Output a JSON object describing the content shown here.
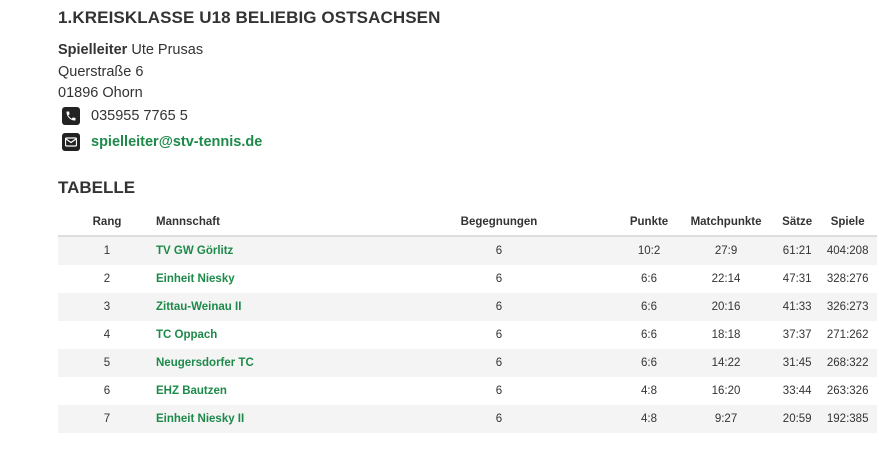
{
  "league": {
    "title": "1.KREISKLASSE U18 BELIEBIG OSTSACHSEN"
  },
  "contact": {
    "role_label": "Spielleiter",
    "name": "Ute Prusas",
    "street": "Querstraße 6",
    "city": "01896 Ohorn",
    "phone": "035955 7765 5",
    "email": "spielleiter@stv-tennis.de",
    "phone_icon": "phone-icon",
    "email_icon": "envelope-icon"
  },
  "table": {
    "title": "TABELLE",
    "headers": [
      "Rang",
      "Mannschaft",
      "Begegnungen",
      "Punkte",
      "Matchpunkte",
      "Sätze",
      "Spiele"
    ],
    "rows": [
      {
        "rang": "1",
        "team": "TV GW Görlitz",
        "begegnungen": "6",
        "punkte": "10:2",
        "matchpunkte": "27:9",
        "saetze": "61:21",
        "spiele": "404:208"
      },
      {
        "rang": "2",
        "team": "Einheit Niesky",
        "begegnungen": "6",
        "punkte": "6:6",
        "matchpunkte": "22:14",
        "saetze": "47:31",
        "spiele": "328:276"
      },
      {
        "rang": "3",
        "team": "Zittau-Weinau II",
        "begegnungen": "6",
        "punkte": "6:6",
        "matchpunkte": "20:16",
        "saetze": "41:33",
        "spiele": "326:273"
      },
      {
        "rang": "4",
        "team": "TC Oppach",
        "begegnungen": "6",
        "punkte": "6:6",
        "matchpunkte": "18:18",
        "saetze": "37:37",
        "spiele": "271:262"
      },
      {
        "rang": "5",
        "team": "Neugersdorfer TC",
        "begegnungen": "6",
        "punkte": "6:6",
        "matchpunkte": "14:22",
        "saetze": "31:45",
        "spiele": "268:322"
      },
      {
        "rang": "6",
        "team": "EHZ Bautzen",
        "begegnungen": "6",
        "punkte": "4:8",
        "matchpunkte": "16:20",
        "saetze": "33:44",
        "spiele": "263:326"
      },
      {
        "rang": "7",
        "team": "Einheit Niesky II",
        "begegnungen": "6",
        "punkte": "4:8",
        "matchpunkte": "9:27",
        "saetze": "20:59",
        "spiele": "192:385"
      }
    ]
  },
  "colors": {
    "link_green": "#1d8a4a",
    "row_stripe": "#f4f4f4",
    "text": "#333333"
  }
}
